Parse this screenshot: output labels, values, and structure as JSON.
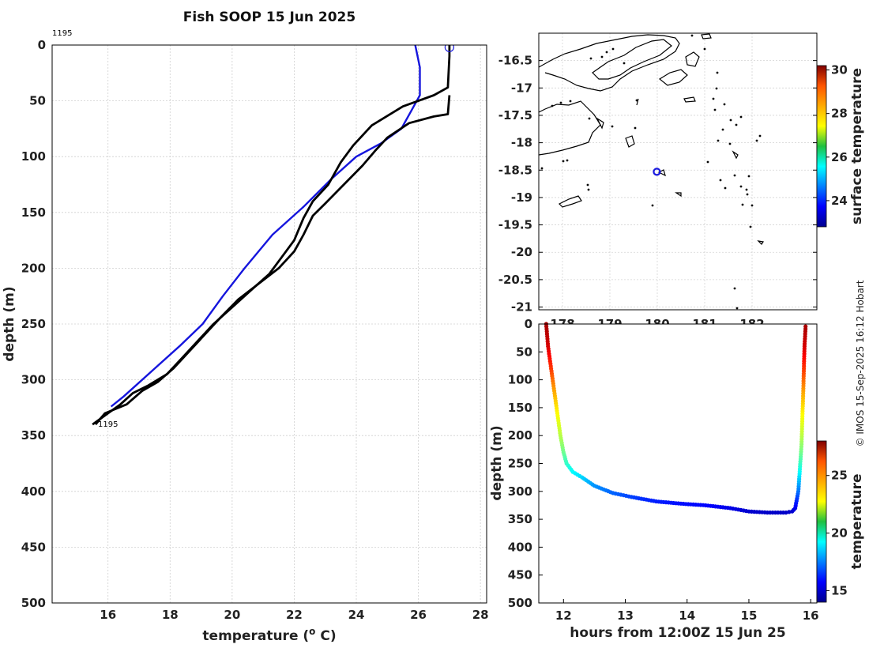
{
  "chart_data": [
    {
      "id": "profile",
      "type": "line",
      "title": "Fish SOOP 15 Jun 2025",
      "xlabel": "temperature (",
      "xlabel_sup": "o",
      "xlabel_unit": " C)",
      "ylabel": "depth (m)",
      "xlim": [
        14.2,
        28.2
      ],
      "ylim": [
        0,
        500
      ],
      "xticks": [
        16,
        18,
        20,
        22,
        24,
        26,
        28
      ],
      "yticks": [
        0,
        50,
        100,
        150,
        200,
        250,
        300,
        350,
        400,
        450,
        500
      ],
      "grid": true,
      "annotations": [
        {
          "text": "1195",
          "x": 14.2,
          "y": -11
        },
        {
          "text": "1195",
          "x": 15.6,
          "y": 341
        }
      ],
      "series": [
        {
          "name": "climatology",
          "color": "#1515dd",
          "points": [
            [
              25.9,
              0
            ],
            [
              26.05,
              20
            ],
            [
              26.05,
              45
            ],
            [
              25.75,
              60
            ],
            [
              25.45,
              75
            ],
            [
              24.8,
              88
            ],
            [
              24.0,
              100
            ],
            [
              23.2,
              120
            ],
            [
              22.3,
              145
            ],
            [
              21.3,
              170
            ],
            [
              20.4,
              200
            ],
            [
              19.7,
              225
            ],
            [
              19.05,
              250
            ],
            [
              18.3,
              270
            ],
            [
              17.5,
              290
            ],
            [
              16.9,
              305
            ],
            [
              16.5,
              315
            ],
            [
              16.1,
              324
            ]
          ]
        },
        {
          "name": "profile-down",
          "color": "#000000",
          "points": [
            [
              27.0,
              0
            ],
            [
              27.0,
              10
            ],
            [
              26.95,
              38
            ],
            [
              26.5,
              45
            ],
            [
              25.5,
              55
            ],
            [
              24.5,
              72
            ],
            [
              23.9,
              90
            ],
            [
              23.5,
              105
            ],
            [
              23.1,
              125
            ],
            [
              22.6,
              140
            ],
            [
              22.3,
              155
            ],
            [
              22.0,
              175
            ],
            [
              21.6,
              190
            ],
            [
              21.2,
              205
            ],
            [
              20.6,
              220
            ],
            [
              20.0,
              235
            ],
            [
              19.4,
              250
            ],
            [
              18.9,
              265
            ],
            [
              18.4,
              280
            ],
            [
              17.9,
              295
            ],
            [
              17.3,
              305
            ],
            [
              16.8,
              312
            ],
            [
              16.4,
              322
            ],
            [
              16.0,
              330
            ],
            [
              15.5,
              340
            ]
          ]
        },
        {
          "name": "profile-up",
          "color": "#000000",
          "points": [
            [
              27.0,
              45
            ],
            [
              26.95,
              62
            ],
            [
              26.5,
              64
            ],
            [
              25.7,
              70
            ],
            [
              25.0,
              83
            ],
            [
              24.6,
              95
            ],
            [
              24.2,
              108
            ],
            [
              23.6,
              125
            ],
            [
              23.0,
              142
            ],
            [
              22.6,
              153
            ],
            [
              22.3,
              170
            ],
            [
              22.0,
              185
            ],
            [
              21.5,
              200
            ],
            [
              20.8,
              215
            ],
            [
              20.2,
              228
            ],
            [
              19.6,
              245
            ],
            [
              19.1,
              260
            ],
            [
              18.6,
              275
            ],
            [
              18.1,
              290
            ],
            [
              17.6,
              302
            ],
            [
              17.1,
              310
            ],
            [
              16.6,
              322
            ],
            [
              15.9,
              330
            ],
            [
              15.6,
              340
            ]
          ]
        }
      ],
      "surface_marker": {
        "x": 27.0,
        "y": 2
      }
    },
    {
      "id": "map",
      "type": "scatter",
      "xticks_labels": [
        "178",
        "179",
        "180",
        "181",
        "182"
      ],
      "yticks": [
        -16.5,
        -17,
        -17.5,
        -18,
        -18.5,
        -19,
        -19.5,
        -20,
        -20.5,
        -21
      ],
      "xlim": [
        177.3,
        183.0
      ],
      "ylim": [
        -21.05,
        -16.0
      ],
      "ship_position": {
        "lon": 179.72,
        "lat": -18.53
      },
      "colorbar": {
        "label": "surface temperature",
        "ticks": [
          24,
          26,
          28,
          30
        ],
        "range": [
          22.8,
          30.2
        ]
      }
    },
    {
      "id": "section",
      "type": "scatter",
      "xlabel": "hours from 12:00Z 15 Jun 25",
      "ylabel": "depth (m)",
      "xlim": [
        11.6,
        16.1
      ],
      "ylim": [
        0,
        500
      ],
      "xticks": [
        12,
        13,
        14,
        15,
        16
      ],
      "yticks": [
        0,
        50,
        100,
        150,
        200,
        250,
        300,
        350,
        400,
        450,
        500
      ],
      "colorbar": {
        "label": "temperature",
        "ticks": [
          15,
          20,
          25
        ],
        "range": [
          14,
          28
        ]
      },
      "track": [
        [
          11.72,
          0
        ],
        [
          11.75,
          40
        ],
        [
          11.8,
          80
        ],
        [
          11.85,
          120
        ],
        [
          11.9,
          160
        ],
        [
          11.95,
          200
        ],
        [
          12.0,
          230
        ],
        [
          12.05,
          250
        ],
        [
          12.15,
          265
        ],
        [
          12.3,
          275
        ],
        [
          12.5,
          290
        ],
        [
          12.8,
          303
        ],
        [
          13.1,
          310
        ],
        [
          13.5,
          318
        ],
        [
          13.9,
          322
        ],
        [
          14.3,
          325
        ],
        [
          14.7,
          330
        ],
        [
          15.0,
          336
        ],
        [
          15.3,
          338
        ],
        [
          15.6,
          338
        ],
        [
          15.7,
          336
        ],
        [
          15.75,
          330
        ],
        [
          15.8,
          300
        ],
        [
          15.85,
          220
        ],
        [
          15.88,
          120
        ],
        [
          15.9,
          40
        ],
        [
          15.92,
          0
        ]
      ],
      "temperature_profile": [
        [
          0,
          27.5
        ],
        [
          40,
          26.8
        ],
        [
          80,
          25.5
        ],
        [
          120,
          24.0
        ],
        [
          160,
          22.8
        ],
        [
          200,
          21.8
        ],
        [
          230,
          20.8
        ],
        [
          250,
          20.0
        ],
        [
          270,
          19.0
        ],
        [
          290,
          17.8
        ],
        [
          305,
          17.0
        ],
        [
          315,
          16.3
        ],
        [
          325,
          15.8
        ],
        [
          332,
          15.3
        ],
        [
          340,
          14.9
        ]
      ]
    }
  ],
  "credit": "© IMOS 15-Sep-2025 16:12 Hobart"
}
